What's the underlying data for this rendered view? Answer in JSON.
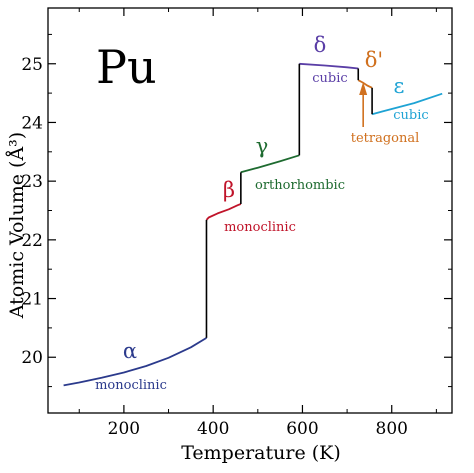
{
  "chart_data": {
    "type": "line",
    "title": "Pu",
    "xlabel": "Temperature (K)",
    "ylabel": "Atomic Volume (Å³)",
    "xlim": [
      30,
      935
    ],
    "ylim": [
      19.05,
      25.95
    ],
    "xticks": [
      200,
      400,
      600,
      800
    ],
    "yticks": [
      20,
      21,
      22,
      23,
      24,
      25
    ],
    "x_tick_labels": [
      "200",
      "400",
      "600",
      "800"
    ],
    "y_tick_labels": [
      "20",
      "21",
      "22",
      "23",
      "24",
      "25"
    ],
    "minor_x_step": 100,
    "minor_y_step": 0.5,
    "grid": false,
    "series": [
      {
        "symbol": "α",
        "structure": "monoclinic",
        "color": "#2b3a8c",
        "x": [
          65,
          100,
          150,
          200,
          250,
          300,
          350,
          385
        ],
        "y": [
          19.52,
          19.57,
          19.65,
          19.74,
          19.85,
          19.99,
          20.17,
          20.33
        ]
      },
      {
        "symbol": "β",
        "structure": "monoclinic",
        "color": "#c0142a",
        "x": [
          385,
          390,
          410,
          435,
          455,
          462
        ],
        "y": [
          22.34,
          22.38,
          22.45,
          22.52,
          22.59,
          22.61
        ]
      },
      {
        "symbol": "γ",
        "structure": "orthorhombic",
        "color": "#1e6b30",
        "x": [
          462,
          500,
          550,
          593
        ],
        "y": [
          23.15,
          23.23,
          23.34,
          23.44
        ]
      },
      {
        "symbol": "δ",
        "structure": "cubic",
        "color": "#5a3ea6",
        "x": [
          593,
          650,
          700,
          725
        ],
        "y": [
          25.0,
          24.97,
          24.94,
          24.92
        ]
      },
      {
        "symbol": "δ'",
        "structure": "tetragonal",
        "color": "#d0701e",
        "x": [
          725,
          735,
          745,
          756
        ],
        "y": [
          24.72,
          24.68,
          24.63,
          24.59
        ]
      },
      {
        "symbol": "ε",
        "structure": "cubic",
        "color": "#1ea3d4",
        "x": [
          756,
          800,
          850,
          913
        ],
        "y": [
          24.14,
          24.23,
          24.33,
          24.49
        ]
      }
    ],
    "transitions": [
      {
        "x": 385,
        "y_from": 20.33,
        "y_to": 22.34
      },
      {
        "x": 462,
        "y_from": 22.61,
        "y_to": 23.15
      },
      {
        "x": 593,
        "y_from": 23.44,
        "y_to": 25.0
      },
      {
        "x": 725,
        "y_from": 24.92,
        "y_to": 24.72
      },
      {
        "x": 756,
        "y_from": 24.59,
        "y_to": 24.14
      }
    ]
  }
}
